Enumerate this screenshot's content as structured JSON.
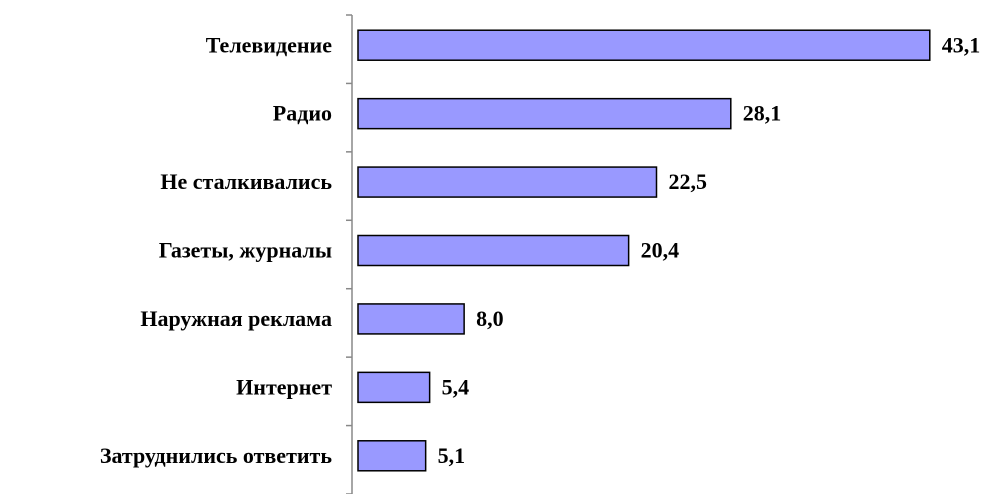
{
  "chart_data": {
    "type": "barh",
    "categories": [
      "Телевидение",
      "Радио",
      "Не сталкивались",
      "Газеты, журналы",
      "Наружная реклама",
      "Интернет",
      "Затруднились ответить"
    ],
    "values": [
      43.1,
      28.1,
      22.5,
      20.4,
      8,
      5.4,
      5.1
    ],
    "value_labels": [
      "43,1",
      "28,1",
      "22,5",
      "20,4",
      "8,0",
      "5,4",
      "5,1"
    ],
    "color": "#9999ff",
    "xlim": [
      0,
      45
    ]
  }
}
